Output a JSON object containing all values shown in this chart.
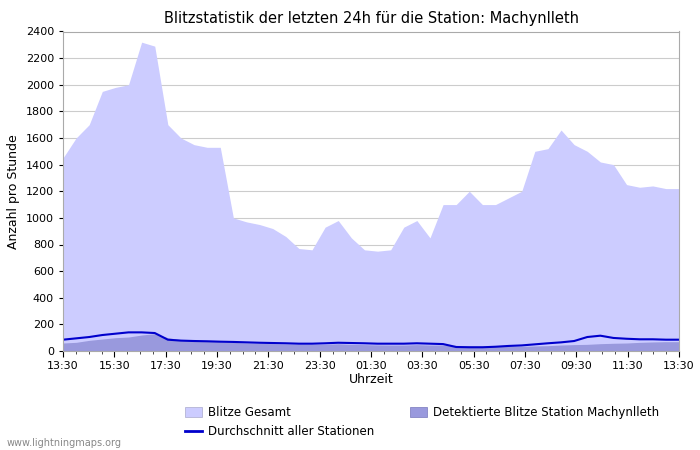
{
  "title": "Blitzstatistik der letzten 24h für die Station: Machynlleth",
  "xlabel": "Uhrzeit",
  "ylabel": "Anzahl pro Stunde",
  "watermark": "www.lightningmaps.org",
  "ylim": [
    0,
    2400
  ],
  "yticks": [
    0,
    200,
    400,
    600,
    800,
    1000,
    1200,
    1400,
    1600,
    1800,
    2000,
    2200,
    2400
  ],
  "xtick_labels": [
    "13:30",
    "15:30",
    "17:30",
    "19:30",
    "21:30",
    "23:30",
    "01:30",
    "03:30",
    "05:30",
    "07:30",
    "09:30",
    "11:30",
    "13:30"
  ],
  "color_gesamt_fill": "#ccccff",
  "color_gesamt_edge": "#aaaaee",
  "color_station_fill": "#9999dd",
  "color_station_edge": "#7777cc",
  "color_avg_line": "#0000cc",
  "legend_labels": [
    "Blitze Gesamt",
    "Detektierte Blitze Station Machynlleth",
    "Durchschnitt aller Stationen"
  ],
  "background_color": "#ffffff",
  "grid_color": "#cccccc",
  "gesamt_values": [
    1450,
    1600,
    1700,
    1950,
    1980,
    2000,
    2320,
    2290,
    1700,
    1600,
    1550,
    1530,
    1530,
    1000,
    970,
    950,
    920,
    860,
    770,
    760,
    930,
    980,
    850,
    760,
    750,
    760,
    930,
    980,
    850,
    1100,
    1100,
    1200,
    1100,
    1100,
    1150,
    1200,
    1500,
    1520,
    1660,
    1550,
    1500,
    1420,
    1400,
    1250,
    1230,
    1240,
    1220,
    1220
  ],
  "station_values": [
    60,
    65,
    80,
    90,
    100,
    105,
    120,
    130,
    100,
    85,
    80,
    75,
    70,
    65,
    60,
    58,
    55,
    52,
    50,
    50,
    50,
    55,
    50,
    48,
    46,
    45,
    45,
    48,
    45,
    45,
    42,
    40,
    38,
    36,
    35,
    35,
    38,
    40,
    45,
    48,
    50,
    55,
    58,
    60,
    65,
    68,
    70,
    70
  ],
  "avg_values": [
    85,
    95,
    105,
    120,
    130,
    140,
    140,
    135,
    85,
    78,
    75,
    73,
    70,
    68,
    65,
    62,
    60,
    58,
    55,
    55,
    58,
    62,
    60,
    58,
    55,
    55,
    55,
    58,
    55,
    52,
    30,
    28,
    28,
    32,
    38,
    42,
    50,
    58,
    65,
    75,
    105,
    115,
    98,
    92,
    88,
    88,
    85,
    85
  ]
}
